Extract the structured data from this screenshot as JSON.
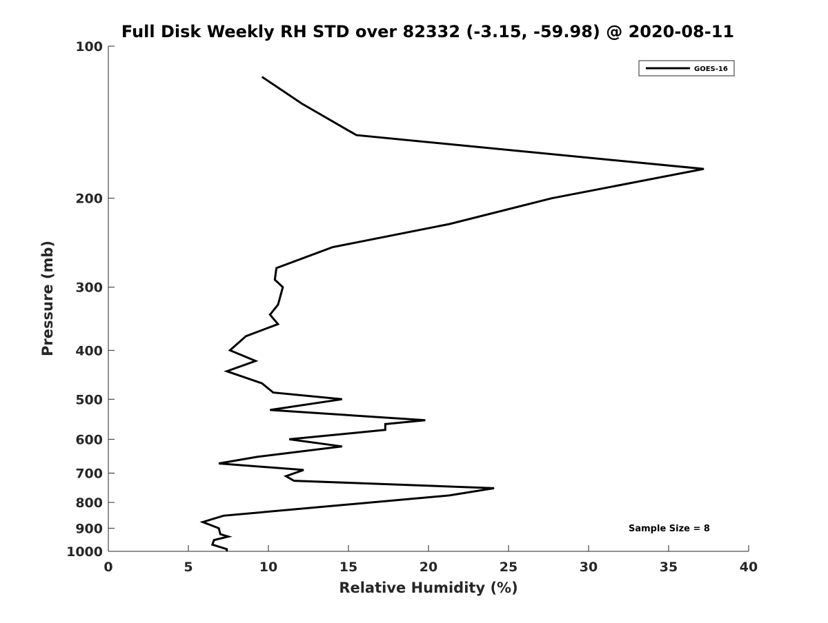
{
  "chart_data": {
    "type": "line",
    "title": "Full Disk Weekly RH STD over 82332 (-3.15, -59.98) @ 2020-08-11",
    "xlabel": "Relative Humidity (%)",
    "ylabel": "Pressure (mb)",
    "xlim": [
      0,
      40
    ],
    "ylim": [
      100,
      1000
    ],
    "y_scale": "log",
    "x_ticks": [
      0,
      5,
      10,
      15,
      20,
      25,
      30,
      35,
      40
    ],
    "x_tick_labels": [
      "0",
      "5",
      "10",
      "15",
      "20",
      "25",
      "30",
      "35",
      "40"
    ],
    "y_ticks": [
      100,
      200,
      300,
      400,
      500,
      600,
      700,
      800,
      900,
      1000
    ],
    "y_tick_labels": [
      "100",
      "200",
      "300",
      "400",
      "500",
      "600",
      "700",
      "800",
      "900",
      "1000"
    ],
    "grid": false,
    "legend_position": "top-right",
    "line_color": "#000000",
    "series": [
      {
        "name": "GOES-16",
        "x": [
          9.6,
          12.1,
          15.5,
          37.2,
          27.7,
          21.3,
          14.0,
          10.5,
          10.4,
          10.9,
          10.6,
          10.1,
          10.6,
          8.6,
          7.6,
          9.2,
          7.4,
          9.6,
          10.3,
          14.6,
          10.1,
          19.8,
          17.3,
          17.3,
          11.3,
          14.6,
          9.3,
          6.9,
          12.2,
          11.1,
          11.6,
          24.1,
          21.3,
          7.2,
          5.9,
          6.9,
          7.0,
          7.5,
          6.6,
          6.5,
          7.4,
          7.4
        ],
        "y": [
          115,
          130,
          150,
          175,
          200,
          225,
          250,
          275,
          290,
          300,
          325,
          340,
          355,
          375,
          400,
          420,
          440,
          465,
          485,
          500,
          525,
          550,
          560,
          575,
          600,
          620,
          650,
          670,
          690,
          710,
          725,
          750,
          775,
          850,
          875,
          900,
          925,
          935,
          950,
          970,
          990,
          1000
        ]
      }
    ],
    "annotation": "Sample Size = 8"
  }
}
